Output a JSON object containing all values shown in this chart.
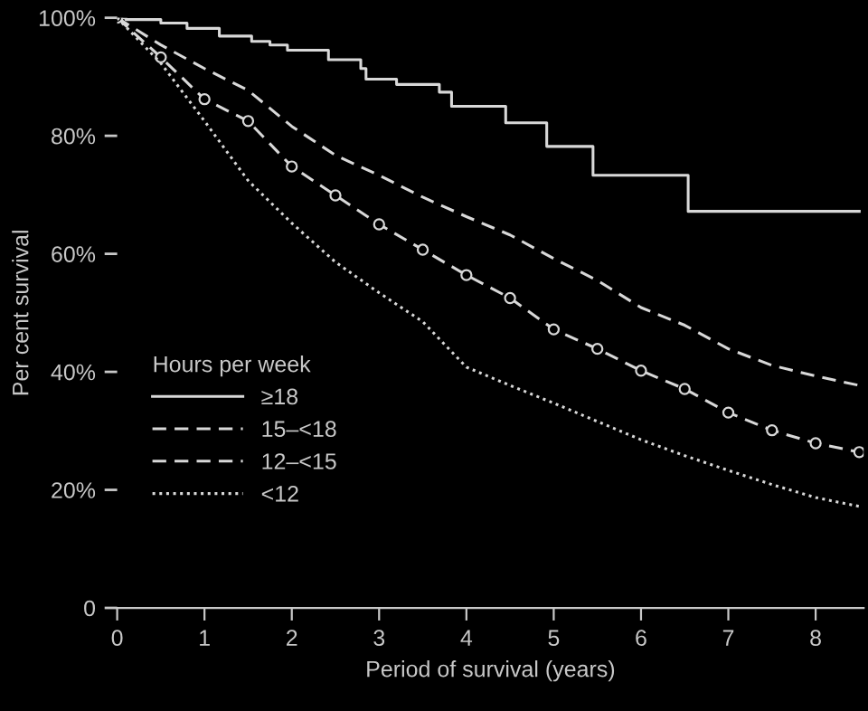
{
  "chart_data": {
    "type": "line",
    "xlabel": "Period of survival (years)",
    "ylabel": "Per cent survival",
    "legend_title": "Hours per week",
    "legend": "left",
    "grid": false,
    "xlim": [
      0,
      8.55
    ],
    "xticks": [
      0,
      1,
      2,
      3,
      4,
      5,
      6,
      7,
      8
    ],
    "ylim": [
      0,
      100
    ],
    "yticks": [
      {
        "value": 0,
        "label": "0"
      },
      {
        "value": 20,
        "label": "20%"
      },
      {
        "value": 40,
        "label": "40%"
      },
      {
        "value": 60,
        "label": "60%"
      },
      {
        "value": 80,
        "label": "80%"
      },
      {
        "value": 100,
        "label": "100%"
      }
    ],
    "series": [
      {
        "name": "≥18",
        "type": "step",
        "color": "#d8d8d8",
        "line_style": "solid",
        "x": [
          0,
          0.1,
          0.5,
          0.8,
          1.17,
          1.54,
          1.75,
          1.95,
          2.42,
          2.79,
          2.85,
          3.2,
          3.69,
          3.83,
          4.45,
          4.92,
          5.45,
          6.54,
          8.5
        ],
        "values": [
          100,
          99.7,
          99.1,
          98.2,
          96.9,
          96.0,
          95.4,
          94.5,
          92.9,
          91.4,
          89.6,
          88.7,
          87.4,
          85.0,
          82.2,
          78.2,
          73.3,
          67.2,
          67.2
        ]
      },
      {
        "name": "15–<18",
        "color": "#d8d8d8",
        "line_style": "dashed",
        "x": [
          0,
          0.5,
          1,
          1.5,
          2,
          2.5,
          3,
          3.5,
          4,
          4.5,
          5,
          5.5,
          6,
          6.5,
          7,
          7.5,
          8,
          8.5
        ],
        "values": [
          100,
          95.4,
          91.4,
          87.7,
          81.6,
          76.7,
          73.3,
          69.6,
          66.3,
          63.2,
          59.2,
          55.5,
          50.9,
          47.9,
          43.9,
          41.1,
          39.3,
          37.7
        ]
      },
      {
        "name": "12–<15",
        "color": "#d8d8d8",
        "line_style": "dashed",
        "marker": "circle",
        "x": [
          0,
          0.5,
          1,
          1.5,
          2,
          2.5,
          3,
          3.5,
          4,
          4.5,
          5,
          5.5,
          6,
          6.5,
          7,
          7.5,
          8,
          8.5
        ],
        "values": [
          100,
          93.3,
          86.2,
          82.5,
          74.8,
          69.9,
          65.0,
          60.7,
          56.4,
          52.5,
          47.2,
          43.9,
          40.2,
          37.1,
          33.1,
          30.1,
          27.9,
          26.4
        ]
      },
      {
        "name": "<12",
        "color": "#d8d8d8",
        "line_style": "dotted",
        "x": [
          0,
          0.5,
          1,
          1.5,
          2,
          2.5,
          3,
          3.5,
          4,
          4.5,
          5,
          5.5,
          6,
          6.5,
          7,
          7.5,
          8,
          8.5
        ],
        "values": [
          100,
          92.3,
          82.5,
          72.4,
          65.2,
          58.6,
          53.4,
          48.5,
          40.8,
          37.7,
          34.7,
          31.6,
          28.5,
          25.8,
          23.3,
          20.9,
          18.7,
          17.2
        ]
      }
    ]
  }
}
